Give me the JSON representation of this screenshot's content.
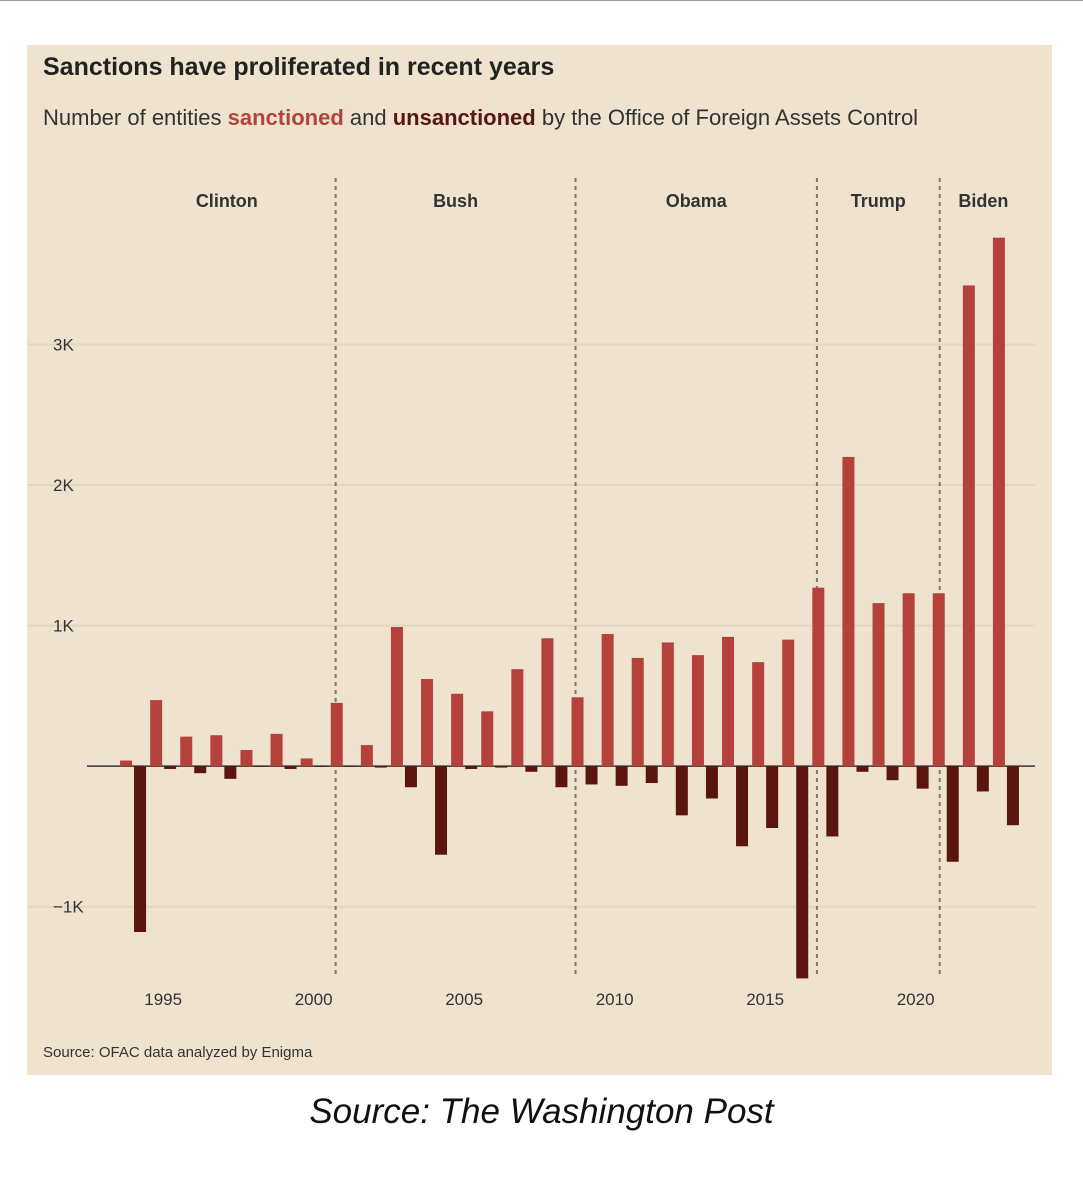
{
  "title": "Sanctions have proliferated in recent years",
  "subtitle": {
    "prefix": "Number of entities ",
    "sanctioned_word": "sanctioned",
    "middle": " and ",
    "unsanctioned_word": "unsanctioned",
    "suffix": " by the Office of Foreign Assets Control"
  },
  "source": "Source: OFAC data analyzed by Enigma",
  "caption": "Source: The Washington Post",
  "colors": {
    "background": "#efe3cf",
    "sanctioned": "#b5423a",
    "unsanctioned": "#5a1510",
    "grid": "#e2d6c2",
    "divider": "#777777"
  },
  "chart_data": {
    "type": "bar",
    "x": [
      1994,
      1995,
      1996,
      1997,
      1998,
      1999,
      2000,
      2001,
      2002,
      2003,
      2004,
      2005,
      2006,
      2007,
      2008,
      2009,
      2010,
      2011,
      2012,
      2013,
      2014,
      2015,
      2016,
      2017,
      2018,
      2019,
      2020,
      2021,
      2022,
      2023
    ],
    "series": [
      {
        "name": "sanctioned",
        "values": [
          40,
          470,
          210,
          220,
          115,
          230,
          55,
          450,
          150,
          990,
          620,
          515,
          390,
          690,
          910,
          490,
          940,
          770,
          880,
          790,
          920,
          740,
          900,
          1270,
          2200,
          1160,
          1230,
          1230,
          3420,
          3760
        ]
      },
      {
        "name": "unsanctioned",
        "values": [
          -1180,
          -20,
          -50,
          -90,
          -5,
          -20,
          -5,
          -5,
          -10,
          -150,
          -630,
          -20,
          -10,
          -40,
          -150,
          -130,
          -140,
          -120,
          -350,
          -230,
          -570,
          -440,
          -1510,
          -500,
          -40,
          -100,
          -160,
          -680,
          -180,
          -420
        ]
      }
    ],
    "x_ticks": [
      1995,
      2000,
      2005,
      2010,
      2015,
      2020
    ],
    "x_tick_labels": [
      "1995",
      "2000",
      "2005",
      "2010",
      "2015",
      "2020"
    ],
    "y_ticks": [
      -1000,
      1000,
      2000,
      3000
    ],
    "y_tick_labels": [
      "−1K",
      "1K",
      "2K",
      "3K"
    ],
    "ylim": [
      -1500,
      3850
    ],
    "xlim": [
      1993.5,
      2023.7
    ],
    "grid": true,
    "legend": "inline in subtitle",
    "administrations": [
      {
        "name": "Clinton",
        "start": 1993.5,
        "end": 2000.73
      },
      {
        "name": "Bush",
        "start": 2000.73,
        "end": 2008.7
      },
      {
        "name": "Obama",
        "start": 2008.7,
        "end": 2016.72
      },
      {
        "name": "Trump",
        "start": 2016.72,
        "end": 2020.8
      },
      {
        "name": "Biden",
        "start": 2020.8,
        "end": 2023.7
      }
    ],
    "dividers": [
      2000.73,
      2008.7,
      2016.72,
      2020.8
    ]
  }
}
